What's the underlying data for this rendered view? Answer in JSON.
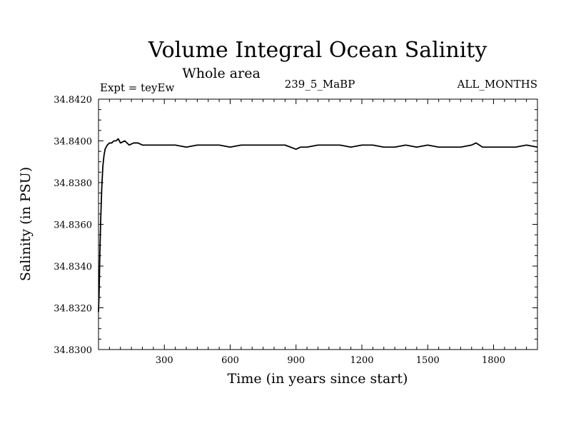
{
  "chart_data": {
    "type": "line",
    "title": "Volume Integral Ocean Salinity",
    "subtitle": "Whole area",
    "experiment": "Expt = teyEw",
    "run_label": "239_5_MaBP",
    "period_label": "ALL_MONTHS",
    "xlabel": "Time (in years since start)",
    "ylabel": "Salinity (in PSU)",
    "xlim": [
      0,
      2000
    ],
    "ylim": [
      34.83,
      34.842
    ],
    "x_ticks": [
      300,
      600,
      900,
      1200,
      1500,
      1800
    ],
    "x_tick_labels": [
      "300",
      "600",
      "900",
      "1200",
      "1500",
      "1800"
    ],
    "y_ticks": [
      34.83,
      34.832,
      34.834,
      34.836,
      34.838,
      34.84,
      34.842
    ],
    "y_tick_labels": [
      "34.8300",
      "34.8320",
      "34.8340",
      "34.8360",
      "34.8380",
      "34.8400",
      "34.8420"
    ],
    "series": [
      {
        "name": "Salinity",
        "color": "#000000",
        "x": [
          0,
          3,
          6,
          10,
          15,
          20,
          25,
          30,
          40,
          50,
          60,
          70,
          80,
          90,
          100,
          120,
          140,
          160,
          180,
          200,
          230,
          260,
          300,
          350,
          400,
          450,
          500,
          550,
          600,
          650,
          700,
          750,
          800,
          850,
          900,
          920,
          950,
          1000,
          1050,
          1100,
          1150,
          1200,
          1250,
          1300,
          1350,
          1400,
          1450,
          1500,
          1550,
          1600,
          1650,
          1700,
          1720,
          1750,
          1800,
          1850,
          1900,
          1950,
          2000
        ],
        "y": [
          34.8318,
          34.8328,
          34.8345,
          34.8362,
          34.8378,
          34.8388,
          34.8393,
          34.8396,
          34.8398,
          34.8399,
          34.8399,
          34.84,
          34.84,
          34.8401,
          34.8399,
          34.84,
          34.8398,
          34.8399,
          34.8399,
          34.8398,
          34.8398,
          34.8398,
          34.8398,
          34.8398,
          34.8397,
          34.8398,
          34.8398,
          34.8398,
          34.8397,
          34.8398,
          34.8398,
          34.8398,
          34.8398,
          34.8398,
          34.8396,
          34.8397,
          34.8397,
          34.8398,
          34.8398,
          34.8398,
          34.8397,
          34.8398,
          34.8398,
          34.8397,
          34.8397,
          34.8398,
          34.8397,
          34.8398,
          34.8397,
          34.8397,
          34.8397,
          34.8398,
          34.8399,
          34.8397,
          34.8397,
          34.8397,
          34.8397,
          34.8398,
          34.8397
        ]
      }
    ]
  }
}
